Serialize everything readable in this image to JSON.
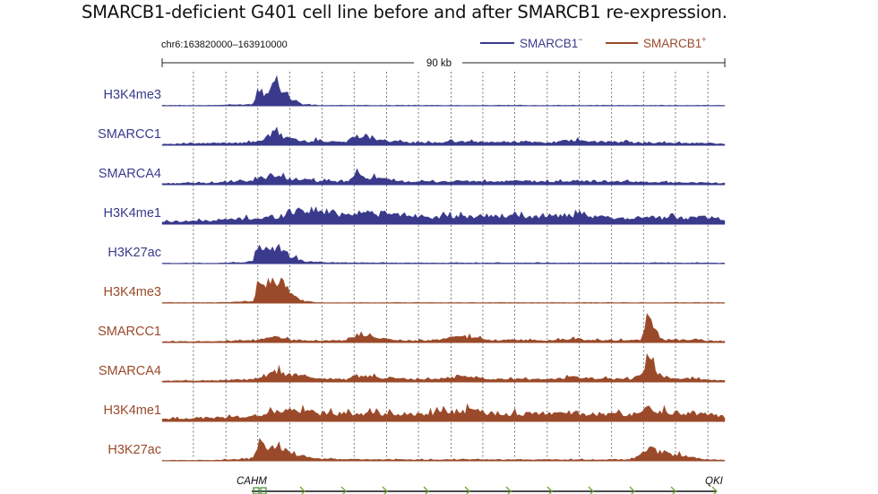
{
  "title": "SMARCB1-deficient G401 cell line before and after SMARCB1 re-expression.",
  "colors": {
    "smarcb1_minus": "#3a3a8c",
    "smarcb1_plus": "#9a4a2a",
    "gene_arrow": "#6aa82a",
    "exon": "#3c8a2c"
  },
  "chart_data": {
    "type": "area",
    "title": "SMARCB1-deficient G401 cell line before and after SMARCB1 re-expression.",
    "coordinate_label": "chr6:163820000–163910000",
    "scale_label": "90 kb",
    "genomic_range": [
      163820000,
      163910000
    ],
    "legend": {
      "placement": "top-right",
      "entries": [
        {
          "name": "SMARCB1",
          "sup": "−",
          "color": "#3a3a8c"
        },
        {
          "name": "SMARCB1",
          "sup": "+",
          "color": "#9a4a2a"
        }
      ]
    },
    "gridline_positions_kb": [
      5.0,
      10.2,
      15.3,
      20.4,
      25.6,
      30.7,
      35.9,
      41.0,
      46.2,
      51.3,
      56.4,
      61.6,
      66.7,
      71.9,
      77.0,
      82.1,
      87.3
    ],
    "genes": [
      {
        "name": "CAHM",
        "position_kb": 16.5
      },
      {
        "name": "QKI",
        "position_kb": 88.0
      }
    ],
    "peak_shape_x_kb": [
      0,
      8,
      14.5,
      15.3,
      16.4,
      17.3,
      18.3,
      19.2,
      20.6,
      22.5,
      25,
      29.5,
      31,
      37,
      41,
      44,
      48,
      53,
      58,
      61,
      66,
      68,
      75,
      76.6,
      77.5,
      80,
      87,
      90
    ],
    "series": [
      {
        "name": "H3K4me3",
        "condition": "SMARCB1−",
        "color": "#3a3a8c",
        "values": [
          0.02,
          0.02,
          0.06,
          0.72,
          0.55,
          0.85,
          1.0,
          0.75,
          0.3,
          0.06,
          0.02,
          0.02,
          0.02,
          0.02,
          0.02,
          0.02,
          0.02,
          0.02,
          0.02,
          0.02,
          0.02,
          0.02,
          0.02,
          0.02,
          0.02,
          0.02,
          0.02,
          0.02
        ]
      },
      {
        "name": "SMARCC1",
        "condition": "SMARCB1−",
        "color": "#3a3a8c",
        "values": [
          0.05,
          0.08,
          0.12,
          0.2,
          0.25,
          0.4,
          0.6,
          0.35,
          0.3,
          0.15,
          0.2,
          0.12,
          0.45,
          0.15,
          0.1,
          0.12,
          0.15,
          0.12,
          0.15,
          0.1,
          0.2,
          0.15,
          0.12,
          0.1,
          0.12,
          0.1,
          0.08,
          0.06
        ]
      },
      {
        "name": "SMARCA4",
        "condition": "SMARCB1−",
        "color": "#3a3a8c",
        "values": [
          0.05,
          0.08,
          0.15,
          0.25,
          0.3,
          0.45,
          0.35,
          0.3,
          0.25,
          0.2,
          0.15,
          0.12,
          0.4,
          0.15,
          0.12,
          0.12,
          0.15,
          0.12,
          0.15,
          0.12,
          0.15,
          0.15,
          0.12,
          0.1,
          0.12,
          0.1,
          0.08,
          0.06
        ]
      },
      {
        "name": "H3K4me1",
        "condition": "SMARCB1−",
        "color": "#3a3a8c",
        "values": [
          0.1,
          0.15,
          0.25,
          0.2,
          0.25,
          0.3,
          0.3,
          0.35,
          0.55,
          0.6,
          0.55,
          0.4,
          0.5,
          0.4,
          0.35,
          0.3,
          0.3,
          0.35,
          0.3,
          0.35,
          0.35,
          0.3,
          0.25,
          0.3,
          0.3,
          0.25,
          0.3,
          0.2
        ]
      },
      {
        "name": "H3K27ac",
        "condition": "SMARCB1−",
        "color": "#3a3a8c",
        "values": [
          0.02,
          0.02,
          0.06,
          0.85,
          0.55,
          0.6,
          0.7,
          0.55,
          0.3,
          0.1,
          0.05,
          0.04,
          0.04,
          0.03,
          0.03,
          0.03,
          0.03,
          0.03,
          0.03,
          0.03,
          0.03,
          0.03,
          0.03,
          0.03,
          0.03,
          0.03,
          0.03,
          0.02
        ]
      },
      {
        "name": "H3K4me3",
        "condition": "SMARCB1+",
        "color": "#9a4a2a",
        "values": [
          0.02,
          0.02,
          0.06,
          0.8,
          0.65,
          0.95,
          1.0,
          0.8,
          0.4,
          0.08,
          0.02,
          0.02,
          0.02,
          0.02,
          0.02,
          0.02,
          0.02,
          0.02,
          0.02,
          0.02,
          0.02,
          0.02,
          0.02,
          0.02,
          0.02,
          0.02,
          0.02,
          0.02
        ]
      },
      {
        "name": "SMARCC1",
        "condition": "SMARCB1+",
        "color": "#9a4a2a",
        "values": [
          0.04,
          0.05,
          0.08,
          0.1,
          0.15,
          0.25,
          0.3,
          0.2,
          0.1,
          0.1,
          0.08,
          0.08,
          0.3,
          0.1,
          0.08,
          0.1,
          0.25,
          0.1,
          0.1,
          0.08,
          0.15,
          0.1,
          0.1,
          0.1,
          1.0,
          0.12,
          0.08,
          0.05
        ]
      },
      {
        "name": "SMARCA4",
        "condition": "SMARCB1+",
        "color": "#9a4a2a",
        "values": [
          0.04,
          0.06,
          0.1,
          0.15,
          0.2,
          0.3,
          0.45,
          0.35,
          0.3,
          0.25,
          0.15,
          0.1,
          0.25,
          0.15,
          0.1,
          0.12,
          0.25,
          0.12,
          0.12,
          0.1,
          0.2,
          0.15,
          0.12,
          0.25,
          0.9,
          0.2,
          0.1,
          0.06
        ]
      },
      {
        "name": "H3K4me1",
        "condition": "SMARCB1+",
        "color": "#9a4a2a",
        "values": [
          0.1,
          0.15,
          0.2,
          0.25,
          0.35,
          0.35,
          0.4,
          0.45,
          0.45,
          0.4,
          0.35,
          0.3,
          0.35,
          0.3,
          0.3,
          0.35,
          0.45,
          0.35,
          0.3,
          0.35,
          0.35,
          0.3,
          0.3,
          0.45,
          0.55,
          0.4,
          0.3,
          0.2
        ]
      },
      {
        "name": "H3K27ac",
        "condition": "SMARCB1+",
        "color": "#9a4a2a",
        "values": [
          0.02,
          0.03,
          0.08,
          0.75,
          0.6,
          0.55,
          0.5,
          0.45,
          0.35,
          0.2,
          0.08,
          0.06,
          0.06,
          0.05,
          0.05,
          0.05,
          0.05,
          0.05,
          0.05,
          0.05,
          0.05,
          0.05,
          0.06,
          0.3,
          0.5,
          0.35,
          0.06,
          0.03
        ]
      }
    ]
  }
}
